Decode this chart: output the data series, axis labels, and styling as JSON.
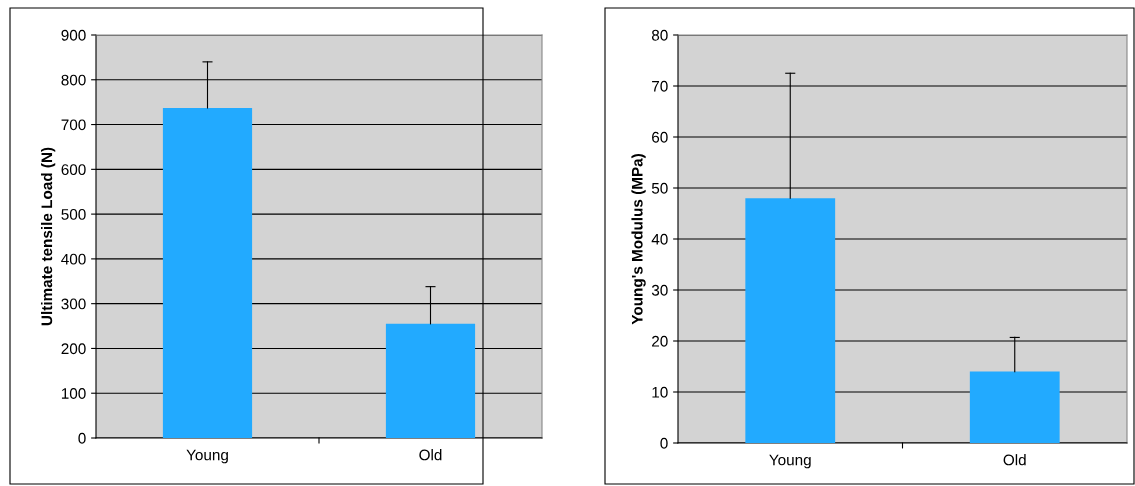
{
  "chart_data": [
    {
      "type": "bar",
      "ylabel": "Ultimate tensile Load (N)",
      "categories": [
        "Young",
        "Old"
      ],
      "values": [
        737,
        255
      ],
      "errors": [
        [
          737,
          840
        ],
        [
          255,
          338
        ]
      ],
      "color": "#22aaff",
      "ylim": [
        0,
        900
      ],
      "yticks": [
        0,
        100,
        200,
        300,
        400,
        500,
        600,
        700,
        800,
        900
      ],
      "grid": "y"
    },
    {
      "type": "bar",
      "ylabel": "Young's Modulus (MPa)",
      "categories": [
        "Young",
        "Old"
      ],
      "values": [
        48,
        14
      ],
      "errors": [
        [
          48,
          72.5
        ],
        [
          14,
          20.7
        ]
      ],
      "color": "#22aaff",
      "ylim": [
        0,
        80
      ],
      "yticks": [
        0,
        10,
        20,
        30,
        40,
        50,
        60,
        70,
        80
      ],
      "grid": "y"
    }
  ]
}
